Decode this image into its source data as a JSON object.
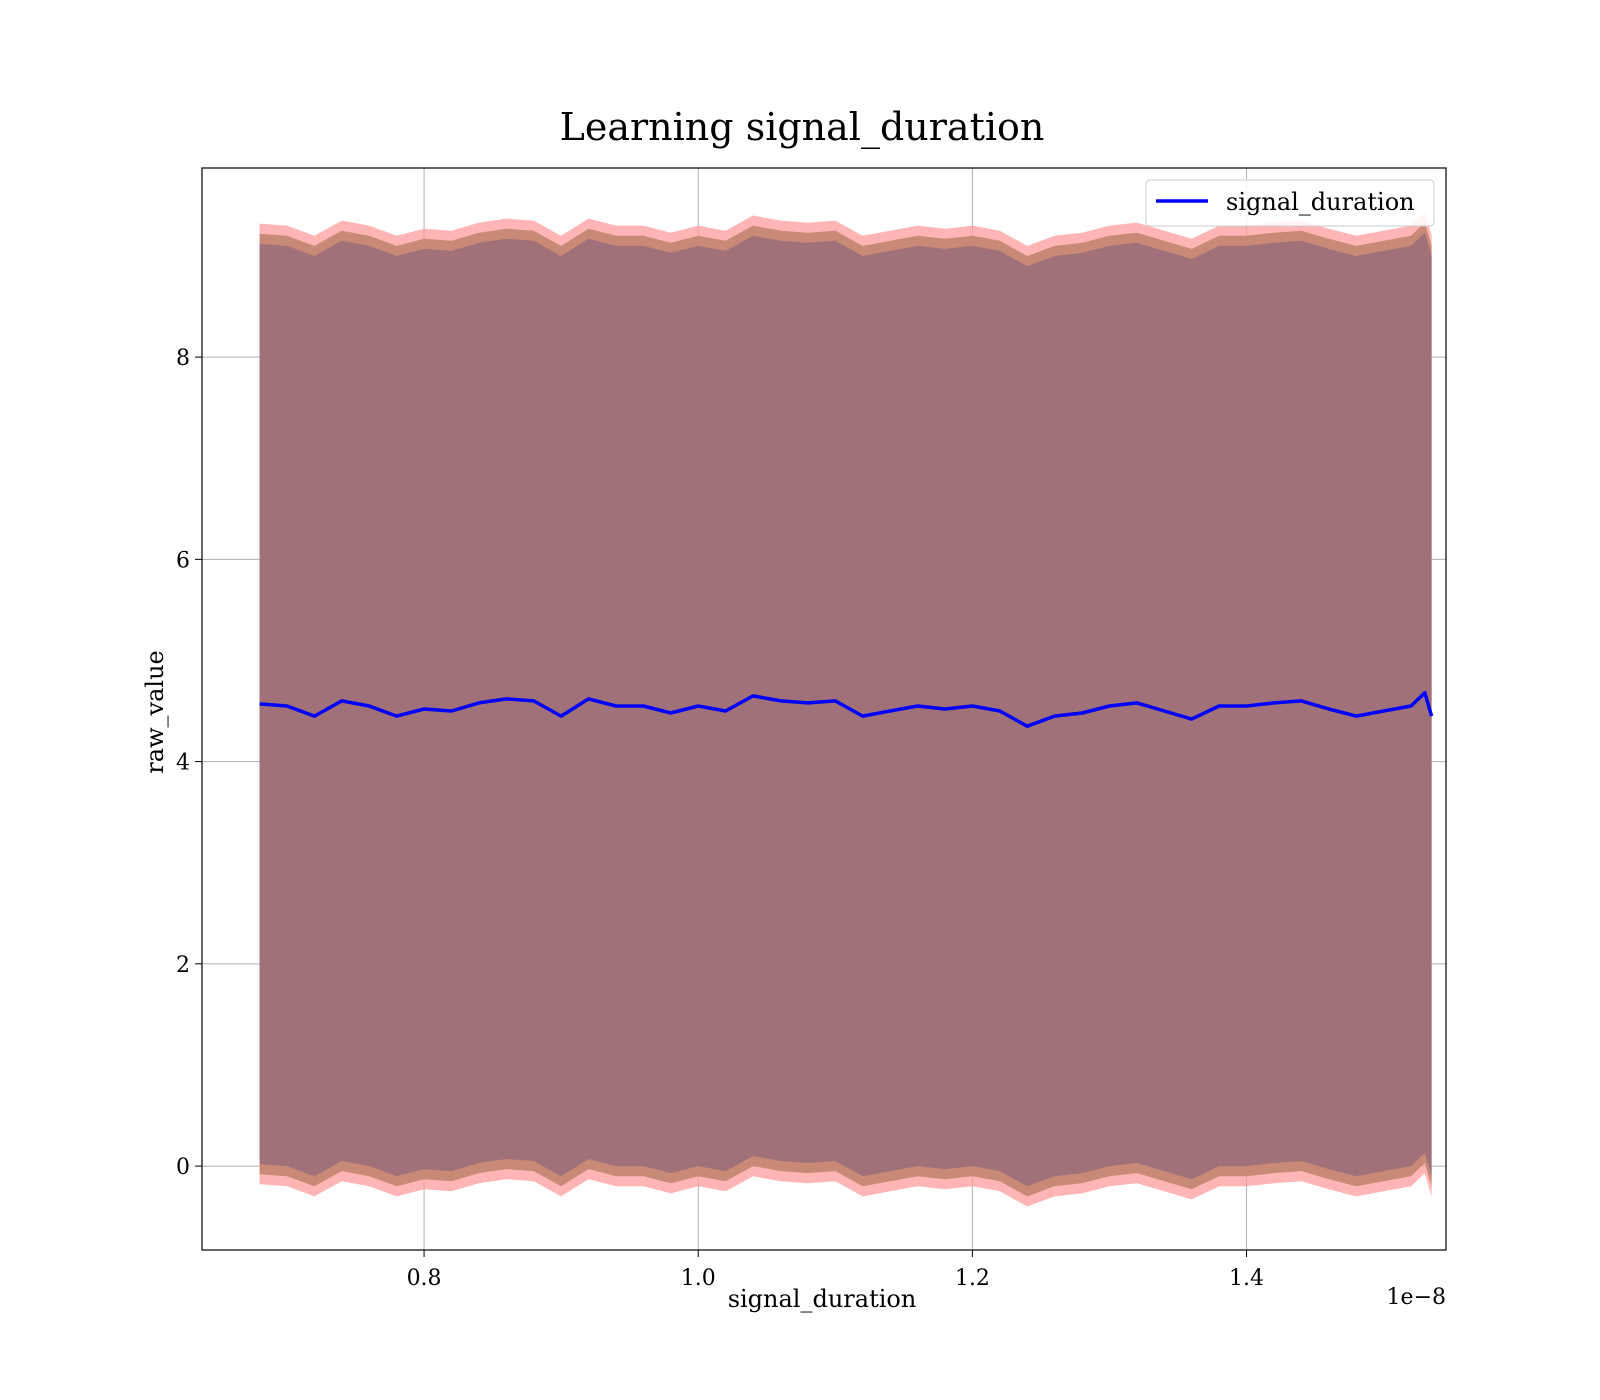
{
  "chart_data": {
    "type": "line",
    "title": "Learning signal_duration",
    "xlabel": "signal_duration",
    "ylabel": "raw_value",
    "x_offset_label": "1e−8",
    "xlim": [
      6.38e-09,
      1.5455e-08
    ],
    "ylim": [
      -0.83,
      9.87
    ],
    "xticks": [
      {
        "value": 8e-09,
        "label": "0.8"
      },
      {
        "value": 1e-08,
        "label": "1.0"
      },
      {
        "value": 1.2e-08,
        "label": "1.2"
      },
      {
        "value": 1.4e-08,
        "label": "1.4"
      }
    ],
    "yticks": [
      {
        "value": 0,
        "label": "0"
      },
      {
        "value": 2,
        "label": "2"
      },
      {
        "value": 4,
        "label": "4"
      },
      {
        "value": 6,
        "label": "6"
      },
      {
        "value": 8,
        "label": "8"
      }
    ],
    "grid": true,
    "legend": {
      "position": "top-right",
      "entries": [
        "signal_duration"
      ]
    },
    "colors": {
      "line": "#0000ff",
      "band_outer": "#ff9c9c",
      "band_middle": "#c88a76",
      "band_inner": "#a07178"
    },
    "series": [
      {
        "name": "signal_duration",
        "x": [
          6.8e-09,
          7e-09,
          7.2e-09,
          7.4e-09,
          7.6e-09,
          7.8e-09,
          8e-09,
          8.2e-09,
          8.4e-09,
          8.6e-09,
          8.8e-09,
          9e-09,
          9.2e-09,
          9.4e-09,
          9.6e-09,
          9.8e-09,
          1e-08,
          1.02e-08,
          1.04e-08,
          1.06e-08,
          1.08e-08,
          1.1e-08,
          1.12e-08,
          1.14e-08,
          1.16e-08,
          1.18e-08,
          1.2e-08,
          1.22e-08,
          1.24e-08,
          1.26e-08,
          1.28e-08,
          1.3e-08,
          1.32e-08,
          1.34e-08,
          1.36e-08,
          1.38e-08,
          1.4e-08,
          1.42e-08,
          1.44e-08,
          1.46e-08,
          1.48e-08,
          1.5e-08,
          1.52e-08,
          1.53e-08,
          1.535e-08
        ],
        "y": [
          4.57,
          4.55,
          4.45,
          4.6,
          4.55,
          4.45,
          4.52,
          4.5,
          4.58,
          4.62,
          4.6,
          4.45,
          4.62,
          4.55,
          4.55,
          4.48,
          4.55,
          4.5,
          4.65,
          4.6,
          4.58,
          4.6,
          4.45,
          4.5,
          4.55,
          4.52,
          4.55,
          4.5,
          4.35,
          4.45,
          4.48,
          4.55,
          4.58,
          4.5,
          4.42,
          4.55,
          4.55,
          4.58,
          4.6,
          4.52,
          4.45,
          4.5,
          4.55,
          4.68,
          4.45
        ],
        "band_half_width": [
          4.55,
          4.65,
          4.75
        ]
      }
    ]
  }
}
